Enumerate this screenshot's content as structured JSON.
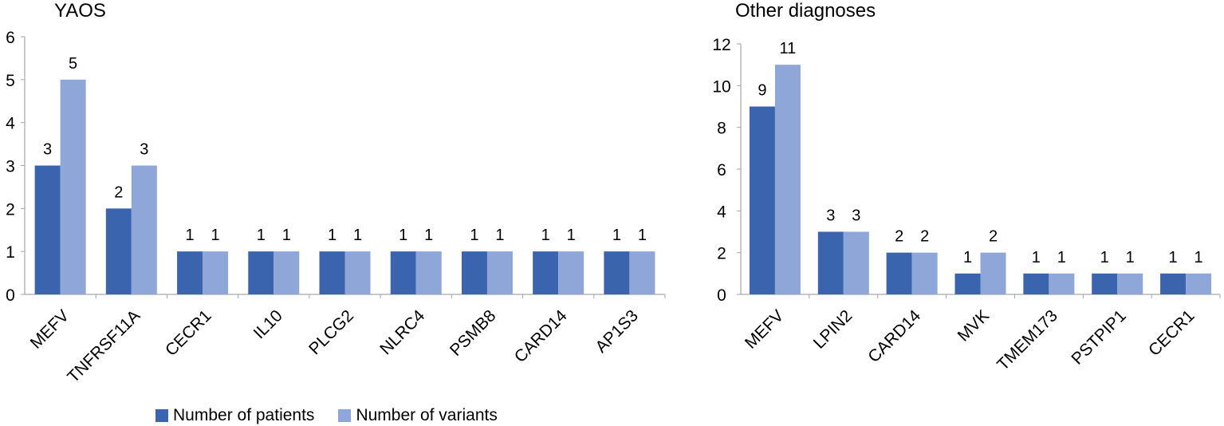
{
  "colors": {
    "patients": "#3b64ae",
    "variants": "#8fa6d8",
    "axis": "#a6a6a6"
  },
  "legend": {
    "patients": "Number of patients",
    "variants": "Number of variants"
  },
  "chart_data": [
    {
      "type": "bar",
      "title": "YAOS",
      "categories": [
        "MEFV",
        "TNFRSF11A",
        "CECR1",
        "IL10",
        "PLCG2",
        "NLRC4",
        "PSMB8",
        "CARD14",
        "AP1S3"
      ],
      "series": [
        {
          "name": "Number of patients",
          "values": [
            3,
            2,
            1,
            1,
            1,
            1,
            1,
            1,
            1
          ]
        },
        {
          "name": "Number of variants",
          "values": [
            5,
            3,
            1,
            1,
            1,
            1,
            1,
            1,
            1
          ]
        }
      ],
      "ylim": [
        0,
        6
      ],
      "yticks": [
        0,
        1,
        2,
        3,
        4,
        5,
        6
      ],
      "xlabel": "",
      "ylabel": "",
      "data_labels": true,
      "legend": "bottom"
    },
    {
      "type": "bar",
      "title": "Other diagnoses",
      "categories": [
        "MEFV",
        "LPIN2",
        "CARD14",
        "MVK",
        "TMEM173",
        "PSTPIP1",
        "CECR1"
      ],
      "series": [
        {
          "name": "Number of patients",
          "values": [
            9,
            3,
            2,
            1,
            1,
            1,
            1
          ]
        },
        {
          "name": "Number of variants",
          "values": [
            11,
            3,
            2,
            2,
            1,
            1,
            1
          ]
        }
      ],
      "ylim": [
        0,
        12
      ],
      "yticks": [
        0,
        2,
        4,
        6,
        8,
        10,
        12
      ],
      "xlabel": "",
      "ylabel": "",
      "data_labels": true,
      "legend": "bottom"
    }
  ]
}
